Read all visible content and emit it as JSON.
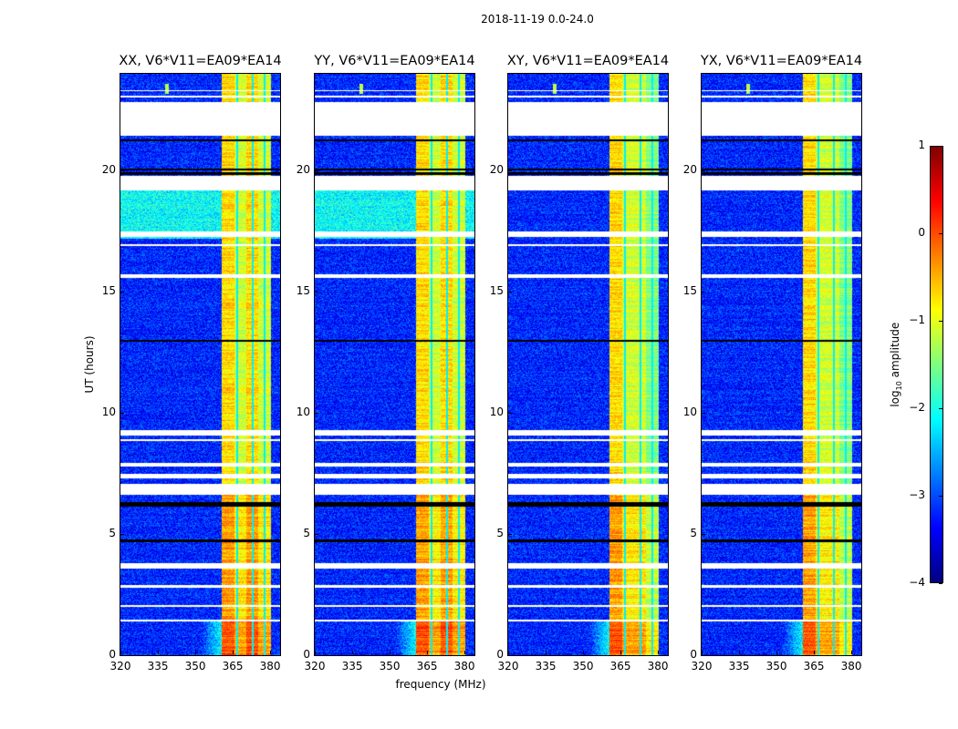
{
  "chart_data": {
    "type": "heatmap",
    "title": "2018-11-19 0.0-24.0",
    "xlabel": "frequency (MHz)",
    "ylabel": "UT (hours)",
    "xlim": [
      320,
      384
    ],
    "ylim": [
      0,
      24
    ],
    "xticks": [
      "320",
      "335",
      "350",
      "365",
      "380"
    ],
    "xtick_values": [
      320,
      335,
      350,
      365,
      380
    ],
    "yticks": [
      "0",
      "5",
      "10",
      "15",
      "20"
    ],
    "ytick_values": [
      0,
      5,
      10,
      15,
      20
    ],
    "panels": [
      {
        "title": "XX, V6*V11=EA09*EA14",
        "cross": false
      },
      {
        "title": "YY, V6*V11=EA09*EA14",
        "cross": false
      },
      {
        "title": "XY, V6*V11=EA09*EA14",
        "cross": true
      },
      {
        "title": "YX, V6*V11=EA09*EA14",
        "cross": true
      }
    ],
    "colorbar": {
      "label_main": "log",
      "label_sub": "10",
      "label_rest": " amplitude",
      "range": [
        -4,
        1
      ],
      "ticks": [
        "1",
        "0",
        "−1",
        "−2",
        "−3",
        "−4"
      ],
      "tick_values": [
        1,
        0,
        -1,
        -2,
        -3,
        -4
      ],
      "colormap": "jet"
    },
    "bright_band_MHz": [
      360.5,
      380
    ],
    "band_gaps_MHz": [
      366.5,
      373,
      377.5
    ],
    "flagged_hours": [
      [
        21.45,
        22.85
      ],
      [
        23.05,
        23.12
      ],
      [
        23.3,
        23.35
      ],
      [
        19.2,
        19.8
      ],
      [
        17.3,
        17.5
      ],
      [
        16.9,
        17.0
      ],
      [
        15.6,
        15.75
      ],
      [
        9.1,
        9.3
      ],
      [
        8.85,
        8.95
      ],
      [
        7.3,
        7.5
      ],
      [
        7.8,
        7.95
      ],
      [
        6.65,
        7.1
      ],
      [
        3.6,
        3.8
      ],
      [
        2.8,
        2.9
      ],
      [
        2.0,
        2.08
      ],
      [
        1.4,
        1.5
      ]
    ],
    "black_hours": [
      [
        6.15,
        6.35
      ],
      [
        19.85,
        19.95
      ],
      [
        20.02,
        20.1
      ],
      [
        12.95,
        13.05
      ],
      [
        4.7,
        4.8
      ],
      [
        21.25,
        21.3
      ]
    ],
    "typical_background_log10": -3.2,
    "typical_band_log10": -0.8
  }
}
